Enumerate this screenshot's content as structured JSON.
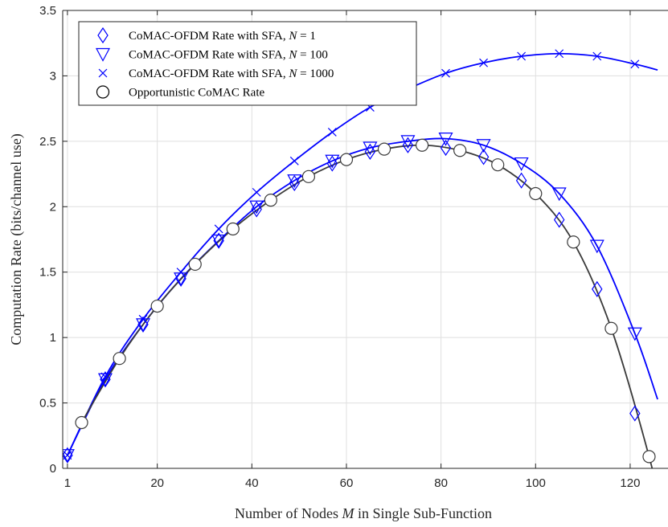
{
  "chart_data": {
    "type": "line",
    "title": "",
    "xlabel": "Number of Nodes M in Single Sub-Function",
    "ylabel": "Computation Rate (bits/channel use)",
    "xlim": [
      0,
      128
    ],
    "ylim": [
      0,
      3.5
    ],
    "xticks": [
      1,
      20,
      40,
      60,
      80,
      100,
      120
    ],
    "yticks": [
      0,
      0.5,
      1,
      1.5,
      2,
      2.5,
      3,
      3.5
    ],
    "xtick_labels": [
      "1",
      "20",
      "40",
      "60",
      "80",
      "100",
      "120"
    ],
    "ytick_labels": [
      "0",
      "0.5",
      "1",
      "1.5",
      "2",
      "2.5",
      "3",
      "3.5"
    ],
    "grid": true,
    "legend_position": "top-left",
    "series": [
      {
        "name": "CoMAC-OFDM Rate with SFA, N = 1",
        "legend_prefix": "CoMAC-OFDM Rate with SFA, ",
        "legend_var": "N",
        "legend_value": " = 1",
        "color": "#0000ff",
        "marker": "diamond",
        "line": false,
        "x": [
          1,
          9,
          17,
          25,
          33,
          41,
          49,
          57,
          65,
          73,
          81,
          89,
          97,
          105,
          113,
          121
        ],
        "y": [
          0.1,
          0.68,
          1.1,
          1.45,
          1.74,
          1.98,
          2.18,
          2.33,
          2.42,
          2.47,
          2.45,
          2.38,
          2.2,
          1.9,
          1.37,
          0.42
        ]
      },
      {
        "name": "CoMAC-OFDM Rate with SFA, N = 100",
        "legend_prefix": "CoMAC-OFDM Rate with SFA, ",
        "legend_var": "N",
        "legend_value": " = 100",
        "color": "#0000ff",
        "marker": "triangle-down",
        "line": true,
        "x": [
          1,
          9,
          17,
          25,
          33,
          41,
          49,
          57,
          65,
          73,
          81,
          89,
          97,
          105,
          113,
          121
        ],
        "y": [
          0.1,
          0.68,
          1.1,
          1.45,
          1.74,
          2.0,
          2.2,
          2.35,
          2.45,
          2.5,
          2.52,
          2.47,
          2.33,
          2.1,
          1.7,
          1.03
        ]
      },
      {
        "name": "CoMAC-OFDM Rate with SFA, N = 1000",
        "legend_prefix": "CoMAC-OFDM Rate with SFA, ",
        "legend_var": "N",
        "legend_value": " = 1000",
        "color": "#0000ff",
        "marker": "x",
        "line": true,
        "x": [
          1,
          9,
          17,
          25,
          33,
          41,
          49,
          57,
          65,
          73,
          81,
          89,
          97,
          105,
          113,
          121
        ],
        "y": [
          0.1,
          0.7,
          1.14,
          1.5,
          1.83,
          2.11,
          2.35,
          2.57,
          2.76,
          2.9,
          3.02,
          3.1,
          3.15,
          3.17,
          3.15,
          3.09
        ]
      },
      {
        "name": "Opportunistic CoMAC Rate",
        "legend_prefix": "Opportunistic CoMAC Rate",
        "legend_var": "",
        "legend_value": "",
        "color": "#3a3a3a",
        "marker": "circle",
        "line": true,
        "x": [
          4,
          12,
          20,
          28,
          36,
          44,
          52,
          60,
          68,
          76,
          84,
          92,
          100,
          108,
          116,
          124
        ],
        "y": [
          0.35,
          0.84,
          1.24,
          1.56,
          1.83,
          2.05,
          2.23,
          2.36,
          2.44,
          2.47,
          2.43,
          2.32,
          2.1,
          1.73,
          1.07,
          0.09
        ]
      }
    ]
  }
}
